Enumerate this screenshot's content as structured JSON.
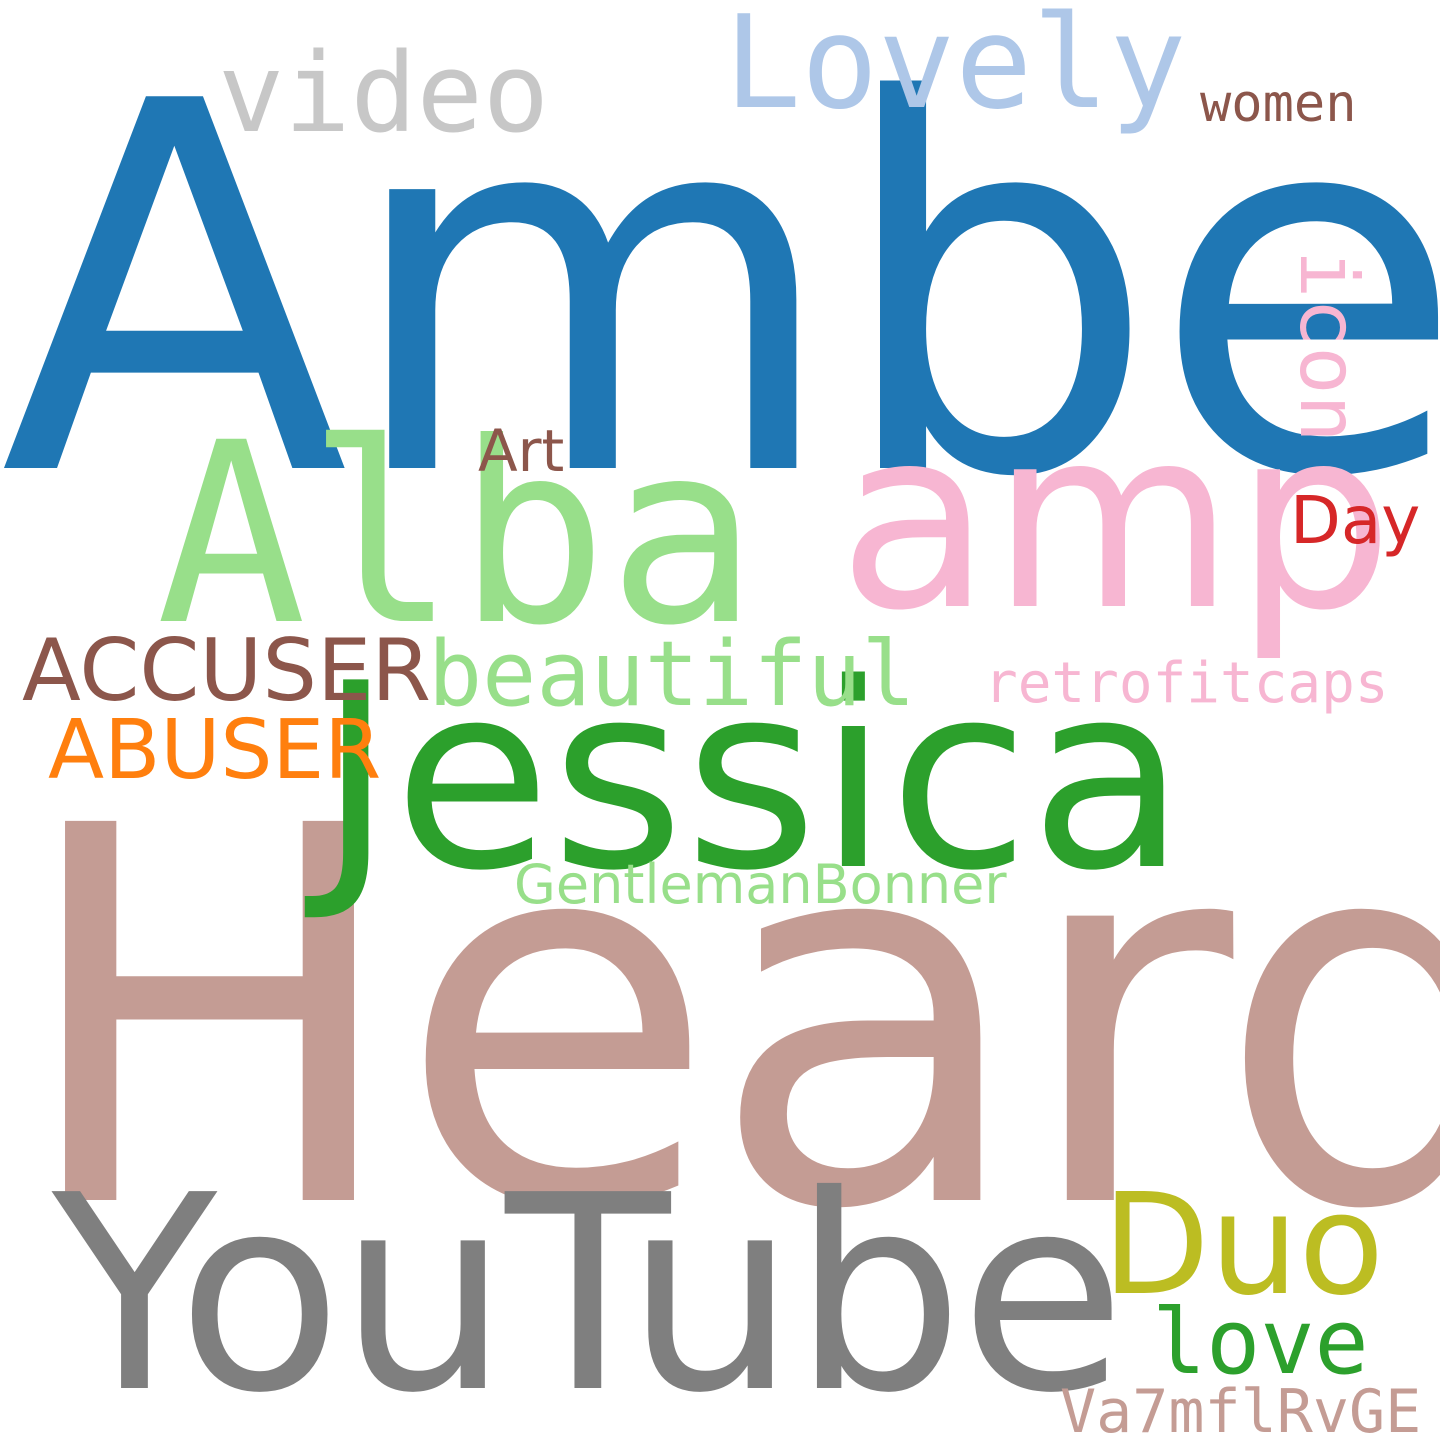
{
  "words": {
    "amber": {
      "text": "Amber",
      "color": "#1f77b4"
    },
    "heard": {
      "text": "Heard",
      "color": "#c49c94"
    },
    "jessica": {
      "text": "Jessica",
      "color": "#2ca02c"
    },
    "youtube": {
      "text": "YouTube",
      "color": "#7f7f7f"
    },
    "alba": {
      "text": "Alba",
      "color": "#98df8a"
    },
    "amp": {
      "text": "amp",
      "color": "#f7b6d2"
    },
    "lovely": {
      "text": "Lovely",
      "color": "#aec7e8"
    },
    "video": {
      "text": "video",
      "color": "#c7c7c7"
    },
    "beautiful": {
      "text": "beautiful",
      "color": "#98df8a"
    },
    "accuser": {
      "text": "ACCUSER",
      "color": "#8c564b"
    },
    "abuser": {
      "text": "ABUSER",
      "color": "#ff7f0e"
    },
    "duo": {
      "text": "Duo",
      "color": "#bcbd22"
    },
    "love": {
      "text": "love",
      "color": "#2ca02c"
    },
    "va7": {
      "text": "Va7mflRvGE",
      "color": "#c49c94"
    },
    "gentle": {
      "text": "GentlemanBonner",
      "color": "#98df8a"
    },
    "retro": {
      "text": "retrofitcaps",
      "color": "#f7b6d2"
    },
    "icon": {
      "text": "icon",
      "color": "#f7b6d2"
    },
    "day": {
      "text": "Day",
      "color": "#d62728"
    },
    "art": {
      "text": "Art",
      "color": "#8c564b"
    },
    "women": {
      "text": "women",
      "color": "#8c564b"
    }
  }
}
